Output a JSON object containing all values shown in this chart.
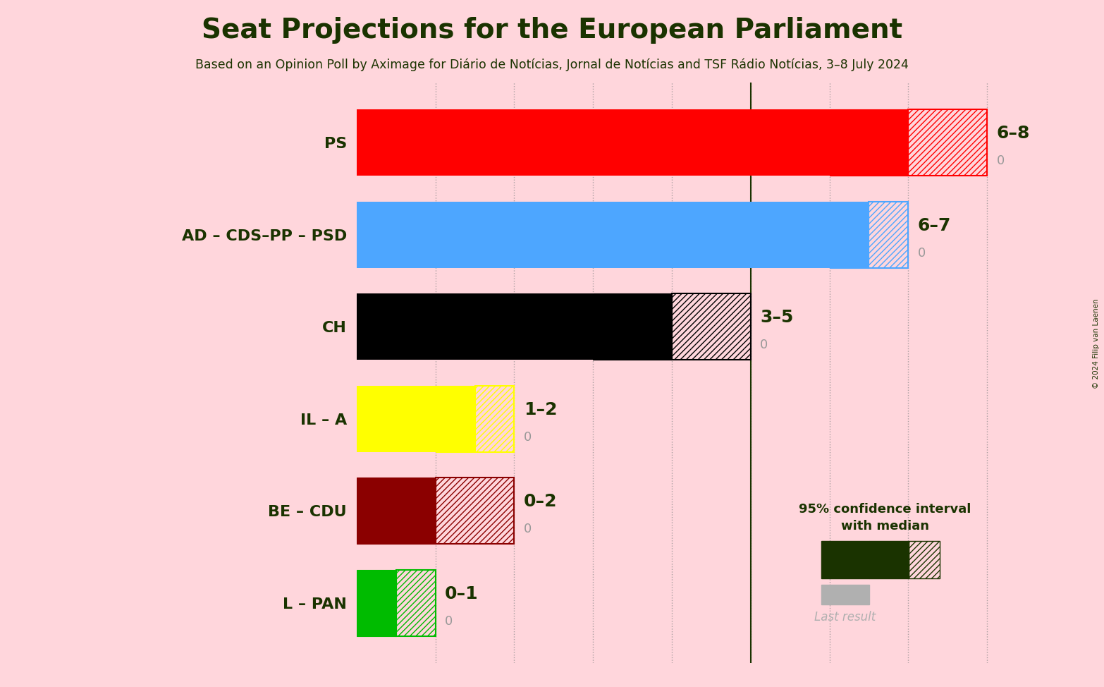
{
  "title": "Seat Projections for the European Parliament",
  "subtitle": "Based on an Opinion Poll by Aximage for Diário de Notícias, Jornal de Notícias and TSF Rádio Notícias, 3–8 July 2024",
  "copyright": "© 2024 Filip van Laenen",
  "background_color": "#ffd6dc",
  "title_color": "#1a3300",
  "subtitle_color": "#1a3300",
  "zero_color": "#999999",
  "parties": [
    "PS",
    "AD – CDS–PP – PSD",
    "CH",
    "IL – A",
    "BE – CDU",
    "L – PAN"
  ],
  "median": [
    6,
    6,
    3,
    1,
    0,
    0
  ],
  "ci_low": [
    6,
    6,
    3,
    1,
    0,
    0
  ],
  "ci_high": [
    8,
    7,
    5,
    2,
    2,
    1
  ],
  "range_labels": [
    "6–8",
    "6–7",
    "3–5",
    "1–2",
    "0–2",
    "0–1"
  ],
  "solid_colors": [
    "#ff0000",
    "#4da6ff",
    "#000000",
    "#ffff00",
    "#8b0000",
    "#00bb00"
  ],
  "xlim": [
    0,
    9.0
  ],
  "xtick_dotted": [
    1,
    2,
    3,
    4,
    5,
    6,
    7,
    8
  ],
  "vline_x": 5,
  "bar_height": 0.72,
  "legend_title": "95% confidence interval\nwith median",
  "legend_last": "Last result",
  "legend_color": "#1a3300",
  "legend_gray": "#b0b0b0"
}
